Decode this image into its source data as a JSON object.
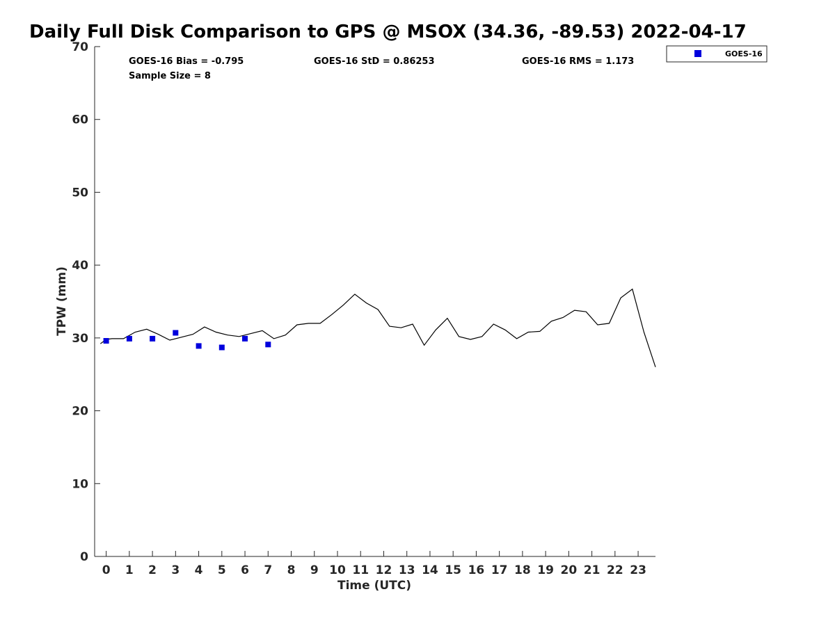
{
  "chart_data": {
    "type": "line",
    "title": "Daily Full Disk Comparison to GPS @ MSOX (34.36, -89.53) 2022-04-17",
    "xlabel": "Time (UTC)",
    "ylabel": "TPW (mm)",
    "xlim": [
      -0.5,
      23.75
    ],
    "ylim": [
      0,
      70
    ],
    "x_ticks": [
      0,
      1,
      2,
      3,
      4,
      5,
      6,
      7,
      8,
      9,
      10,
      11,
      12,
      13,
      14,
      15,
      16,
      17,
      18,
      19,
      20,
      21,
      22,
      23
    ],
    "y_ticks": [
      0,
      10,
      20,
      30,
      40,
      50,
      60,
      70
    ],
    "grid": false,
    "legend_position": "top-right, outside plot",
    "stats": {
      "bias": "GOES-16 Bias = -0.795",
      "std": "GOES-16 StD = 0.86253",
      "rms": "GOES-16 RMS = 1.173",
      "sample": "Sample Size = 8"
    },
    "series": [
      {
        "kind": "line",
        "color": "#000000",
        "x": [
          -0.25,
          0,
          0.25,
          0.75,
          1.25,
          1.75,
          2.25,
          2.75,
          3.25,
          3.75,
          4.25,
          4.75,
          5.25,
          5.75,
          6.25,
          6.75,
          7.25,
          7.75,
          8.25,
          8.75,
          9.25,
          9.75,
          10.25,
          10.75,
          11.25,
          11.75,
          12.25,
          12.75,
          13.25,
          13.75,
          14.25,
          14.75,
          15.25,
          15.75,
          16.25,
          16.75,
          17.25,
          17.75,
          18.25,
          18.75,
          19.25,
          19.75,
          20.25,
          20.75,
          21.25,
          21.75,
          22.25,
          22.75,
          23.25,
          23.75
        ],
        "y": [
          29.2,
          29.8,
          29.9,
          29.9,
          30.8,
          31.2,
          30.5,
          29.7,
          30.1,
          30.5,
          31.5,
          30.8,
          30.4,
          30.2,
          30.6,
          31.0,
          29.9,
          30.4,
          31.8,
          32.0,
          32.0,
          33.2,
          34.5,
          36.0,
          34.8,
          33.9,
          31.6,
          31.4,
          31.9,
          29.0,
          31.1,
          32.7,
          30.2,
          29.8,
          30.2,
          31.9,
          31.1,
          29.9,
          30.8,
          30.9,
          32.3,
          32.8,
          33.8,
          33.6,
          31.8,
          32.0,
          35.5,
          36.7,
          30.8,
          26.0
        ]
      },
      {
        "name": "GOES-16",
        "kind": "scatter",
        "color": "#0000dd",
        "x": [
          0,
          1,
          2,
          3,
          4,
          5,
          6,
          7
        ],
        "y": [
          29.6,
          29.9,
          29.9,
          30.7,
          28.9,
          28.7,
          29.9,
          29.1
        ]
      }
    ]
  }
}
